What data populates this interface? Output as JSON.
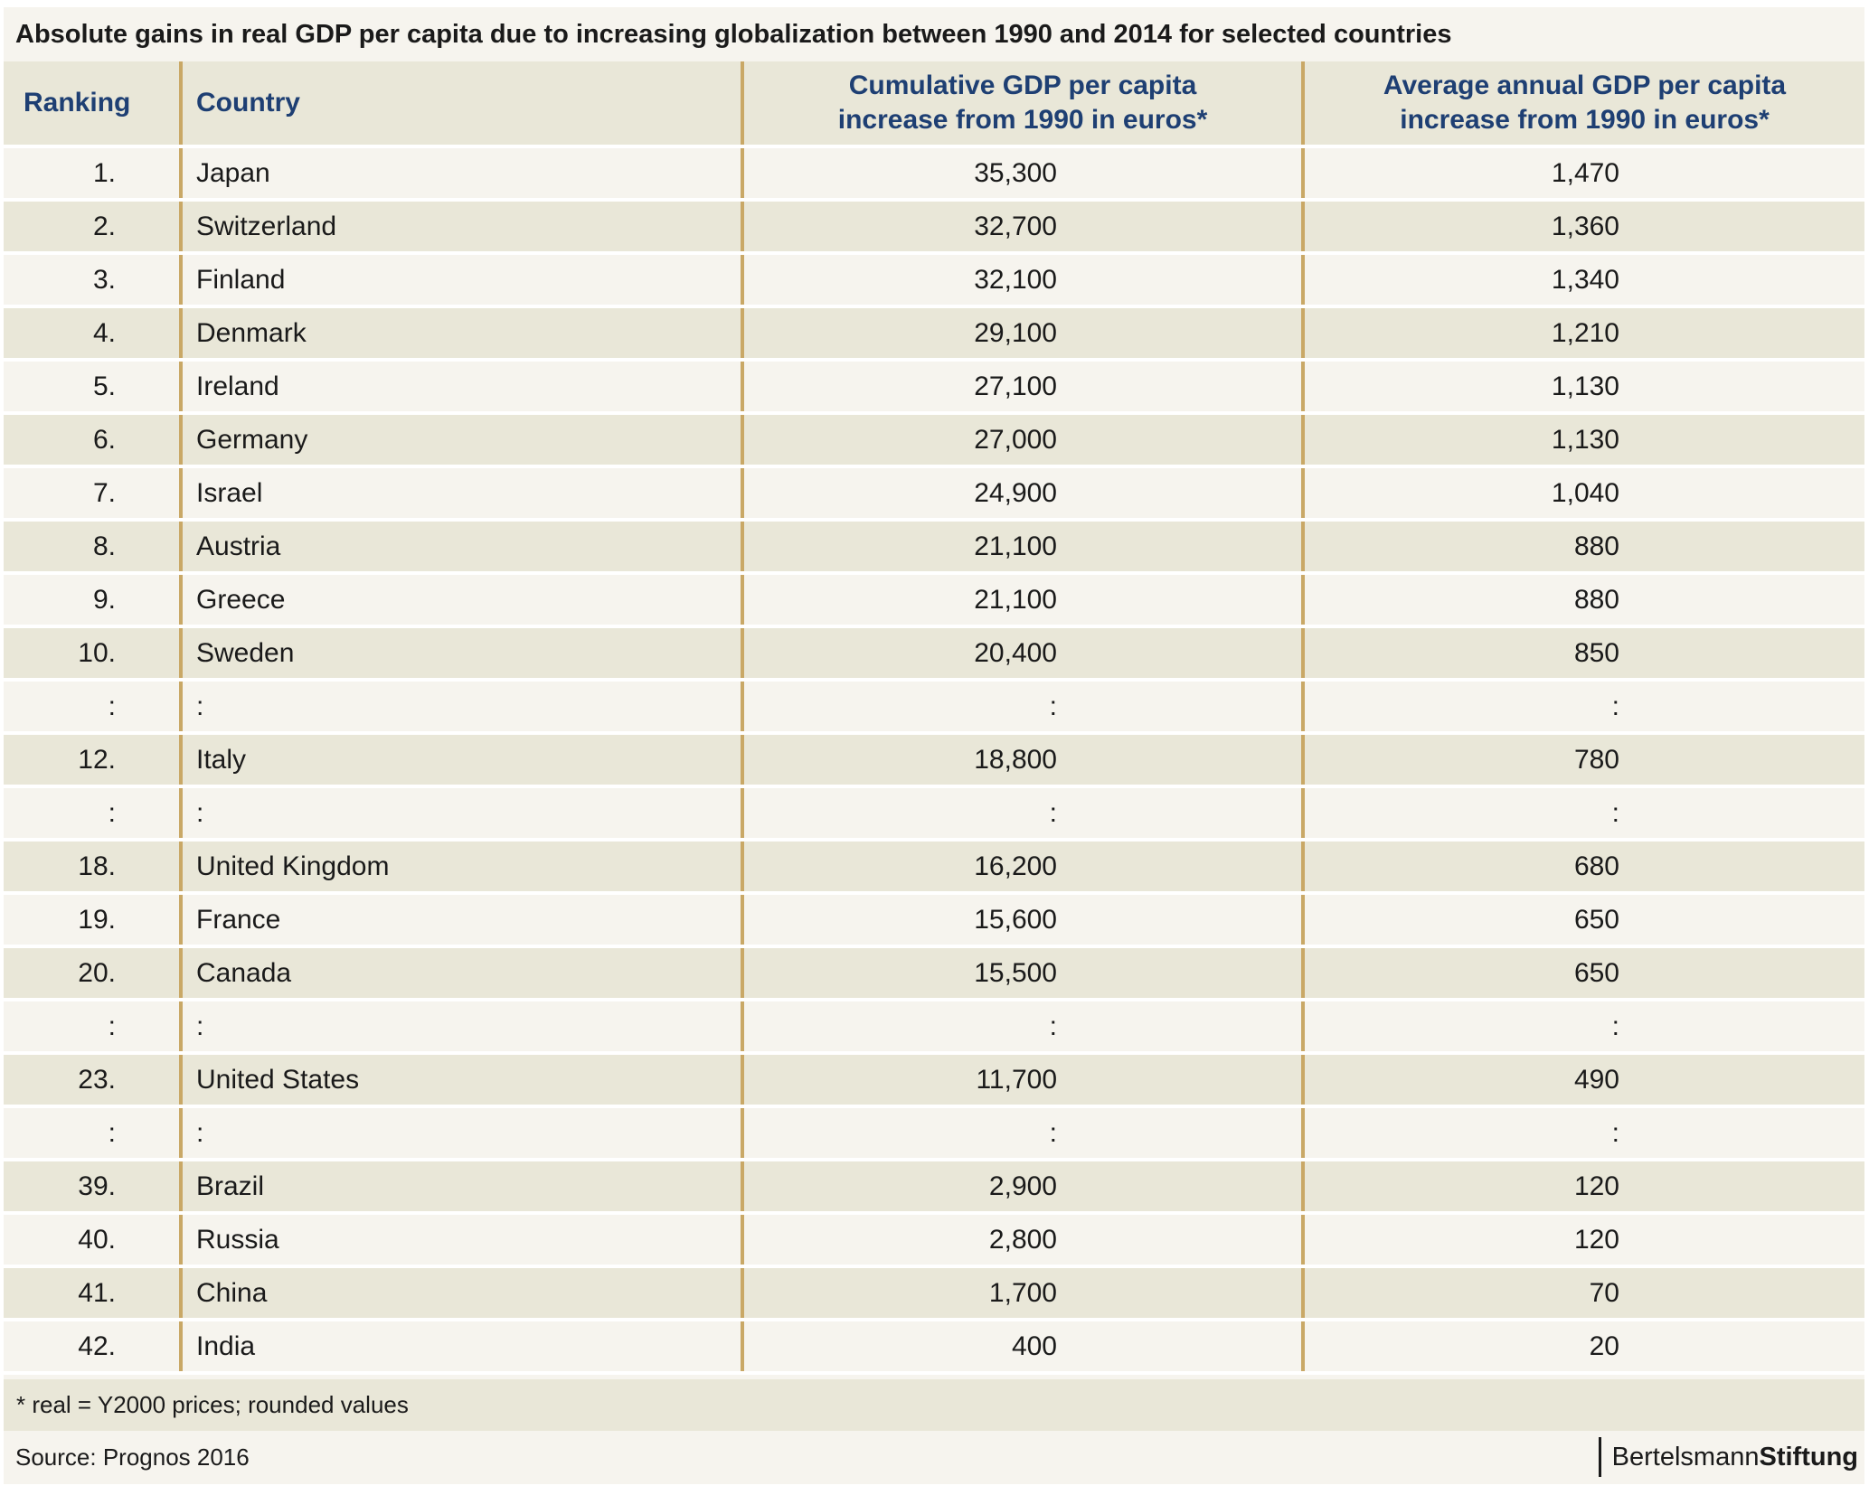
{
  "chart_data": {
    "type": "table",
    "title": "Absolute gains in real GDP per capita due to increasing globalization between 1990 and 2014 for selected countries",
    "columns": [
      "Ranking",
      "Country",
      "Cumulative GDP per capita increase from 1990 in euros*",
      "Average annual GDP per capita increase from 1990 in euros*"
    ],
    "rows": [
      [
        "1.",
        "Japan",
        "35,300",
        "1,470"
      ],
      [
        "2.",
        "Switzerland",
        "32,700",
        "1,360"
      ],
      [
        "3.",
        "Finland",
        "32,100",
        "1,340"
      ],
      [
        "4.",
        "Denmark",
        "29,100",
        "1,210"
      ],
      [
        "5.",
        "Ireland",
        "27,100",
        "1,130"
      ],
      [
        "6.",
        "Germany",
        "27,000",
        "1,130"
      ],
      [
        "7.",
        "Israel",
        "24,900",
        "1,040"
      ],
      [
        "8.",
        "Austria",
        "21,100",
        "880"
      ],
      [
        "9.",
        "Greece",
        "21,100",
        "880"
      ],
      [
        "10.",
        "Sweden",
        "20,400",
        "850"
      ],
      [
        ":",
        ":",
        ":",
        ":"
      ],
      [
        "12.",
        "Italy",
        "18,800",
        "780"
      ],
      [
        ":",
        ":",
        ":",
        ":"
      ],
      [
        "18.",
        "United Kingdom",
        "16,200",
        "680"
      ],
      [
        "19.",
        "France",
        "15,600",
        "650"
      ],
      [
        "20.",
        "Canada",
        "15,500",
        "650"
      ],
      [
        ":",
        ":",
        ":",
        ":"
      ],
      [
        "23.",
        "United States",
        "11,700",
        "490"
      ],
      [
        ":",
        ":",
        ":",
        ":"
      ],
      [
        "39.",
        "Brazil",
        "2,900",
        "120"
      ],
      [
        "40.",
        "Russia",
        "2,800",
        "120"
      ],
      [
        "41.",
        "China",
        "1,700",
        "70"
      ],
      [
        "42.",
        "India",
        "400",
        "20"
      ]
    ],
    "footnote": "* real = Y2000 prices; rounded values",
    "source": "Source: Prognos 2016",
    "brand": {
      "light": "Bertelsmann",
      "bold": "Stiftung"
    },
    "colors": {
      "header_text": "#1e3f73",
      "row_light": "#f6f4ee",
      "row_dark": "#e9e7d8",
      "column_separator": "#c9a866"
    }
  }
}
